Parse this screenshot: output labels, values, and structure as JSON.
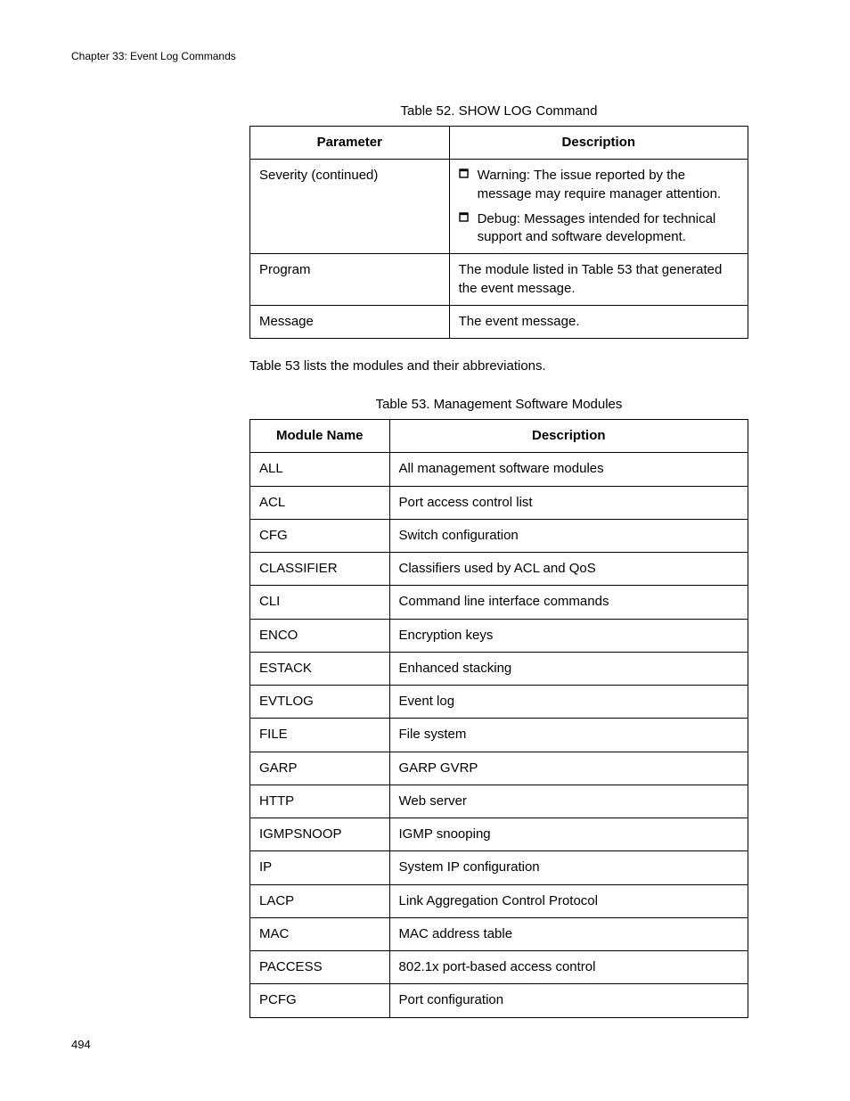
{
  "chapter_header": "Chapter 33: Event Log Commands",
  "table52": {
    "caption": "Table 52. SHOW LOG Command",
    "columns": [
      "Parameter",
      "Description"
    ],
    "rows": [
      {
        "param": "Severity (continued)",
        "bullets": [
          "Warning: The issue reported by the message may require manager attention.",
          "Debug: Messages intended for technical support and software development."
        ]
      },
      {
        "param": "Program",
        "desc": "The module listed in Table 53 that generated the event message."
      },
      {
        "param": "Message",
        "desc": "The event message."
      }
    ]
  },
  "inter_text": "Table 53 lists the modules and their abbreviations.",
  "table53": {
    "caption": "Table 53. Management Software Modules",
    "columns": [
      "Module Name",
      "Description"
    ],
    "rows": [
      [
        "ALL",
        "All management software modules"
      ],
      [
        "ACL",
        "Port access control list"
      ],
      [
        "CFG",
        "Switch configuration"
      ],
      [
        "CLASSIFIER",
        "Classifiers used by ACL and QoS"
      ],
      [
        "CLI",
        "Command line interface commands"
      ],
      [
        "ENCO",
        "Encryption keys"
      ],
      [
        "ESTACK",
        "Enhanced stacking"
      ],
      [
        "EVTLOG",
        "Event log"
      ],
      [
        "FILE",
        "File system"
      ],
      [
        "GARP",
        "GARP GVRP"
      ],
      [
        "HTTP",
        "Web server"
      ],
      [
        "IGMPSNOOP",
        "IGMP snooping"
      ],
      [
        "IP",
        "System IP configuration"
      ],
      [
        "LACP",
        "Link Aggregation Control Protocol"
      ],
      [
        "MAC",
        "MAC address table"
      ],
      [
        "PACCESS",
        "802.1x port-based access control"
      ],
      [
        "PCFG",
        "Port configuration"
      ]
    ]
  },
  "page_number": "494"
}
